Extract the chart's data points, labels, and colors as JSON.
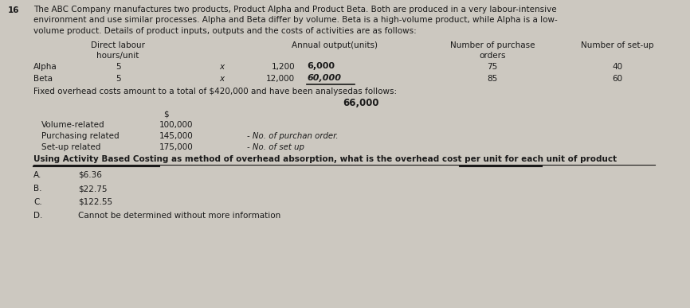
{
  "bg_color": "#ccc8c0",
  "text_color": "#1a1a1a",
  "question_number": "16",
  "intro_lines": [
    "The ABC Company rnanufactures two products, Product Alpha and Product Beta. Both are produced in a very labour-intensive",
    "environment and use similar processes. Alpha and Beta differ by volume. Beta is a high-volume product, while Alpha is a low-",
    "volume product. Details of product inputs, outputs and the costs of activities are as follows:"
  ],
  "col_header_dl": "Direct labour",
  "col_header_hu": "hours/unit",
  "col_header_ao": "Annual output(units)",
  "col_header_np": "Number of purchase",
  "col_header_orders": "orders",
  "col_header_ns": "Number of set-up",
  "alpha_label": "Alpha",
  "alpha_dl": "5",
  "alpha_x": "x",
  "alpha_1200": "1,200",
  "alpha_6000": "6,000",
  "alpha_75": "75",
  "alpha_40": "40",
  "beta_label": "Beta",
  "beta_dl": "5",
  "beta_x": "x",
  "beta_12000": "12,000",
  "beta_60000": "60,000",
  "beta_85": "85",
  "beta_60": "60",
  "fixed_line": "Fixed overhead costs amount to a total of $420,000 and have been analysedas follows:",
  "handwritten_total": "66,000",
  "dollar_sign": "$",
  "vol_label": "Volume-related",
  "vol_amt": "100,000",
  "purch_label": "Purchasing related",
  "purch_amt": "145,000",
  "purch_note": "- No. of purchan order.",
  "setup_label": "Set-up related",
  "setup_amt": "175,000",
  "setup_note": "- No. of set up",
  "question_line": "Using Activity Based Costing as method of overhead absorption, what is the overhead cost per unit for each unit of product",
  "opt_A_letter": "A.",
  "opt_A_text": "$6.36",
  "opt_B_letter": "B.",
  "opt_B_text": "$22.75",
  "opt_C_letter": "C.",
  "opt_C_text": "$122.55",
  "opt_D_letter": "D.",
  "opt_D_text": "Cannot be determined without more information"
}
